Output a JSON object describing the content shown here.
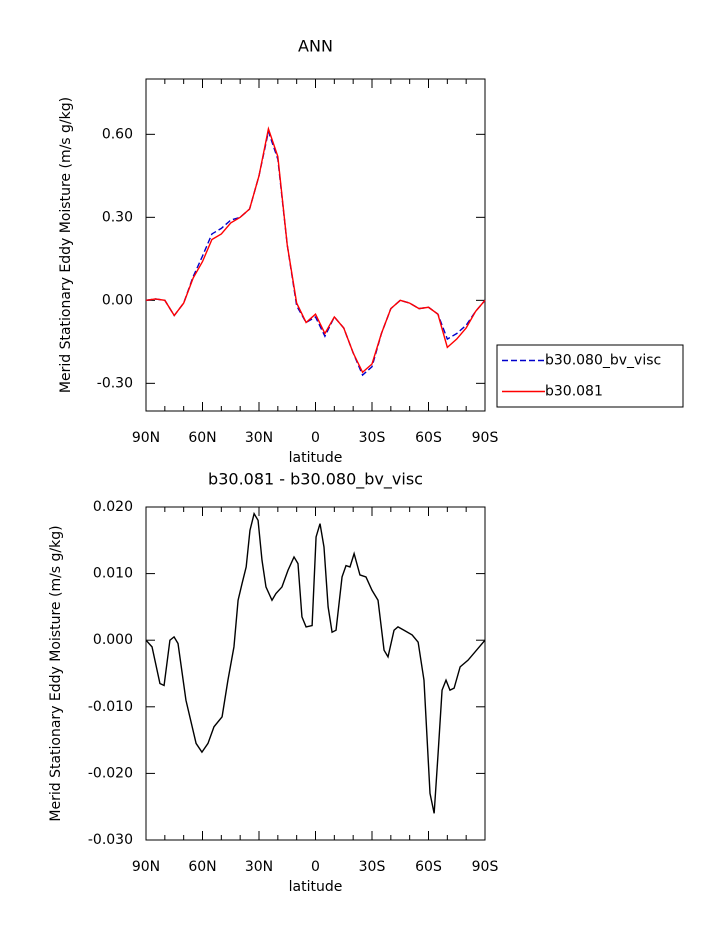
{
  "chart_data": [
    {
      "type": "line",
      "title": "ANN",
      "xlabel": "latitude",
      "ylabel": "Merid Stationary Eddy Moisture (m/s g/kg)",
      "x": [
        90,
        85,
        80,
        75,
        70,
        65,
        60,
        55,
        50,
        45,
        40,
        35,
        30,
        25,
        20,
        15,
        10,
        5,
        0,
        -5,
        -10,
        -15,
        -20,
        -25,
        -30,
        -35,
        -40,
        -45,
        -50,
        -55,
        -60,
        -65,
        -70,
        -75,
        -80,
        -85,
        -90
      ],
      "series": [
        {
          "name": "b30.080_bv_visc",
          "color": "#0000cc",
          "linestyle": "dashed",
          "values": [
            0,
            0.005,
            0,
            -0.055,
            -0.01,
            0.085,
            0.16,
            0.24,
            0.26,
            0.29,
            0.3,
            0.33,
            0.45,
            0.61,
            0.51,
            0.2,
            -0.02,
            -0.08,
            -0.06,
            -0.13,
            -0.06,
            -0.1,
            -0.19,
            -0.27,
            -0.24,
            -0.12,
            -0.03,
            0,
            -0.01,
            -0.03,
            -0.025,
            -0.05,
            -0.14,
            -0.12,
            -0.09,
            -0.04,
            0
          ]
        },
        {
          "name": "b30.081",
          "color": "#ff0000",
          "linestyle": "solid",
          "values": [
            0,
            0.005,
            0,
            -0.055,
            -0.01,
            0.08,
            0.14,
            0.22,
            0.24,
            0.28,
            0.3,
            0.33,
            0.45,
            0.62,
            0.52,
            0.2,
            -0.01,
            -0.08,
            -0.05,
            -0.12,
            -0.06,
            -0.1,
            -0.19,
            -0.26,
            -0.23,
            -0.12,
            -0.03,
            0,
            -0.01,
            -0.03,
            -0.025,
            -0.05,
            -0.17,
            -0.14,
            -0.1,
            -0.04,
            0
          ]
        }
      ],
      "xlim": [
        90,
        -90
      ],
      "xticks": [
        {
          "value": 90,
          "label": "90N"
        },
        {
          "value": 60,
          "label": "60N"
        },
        {
          "value": 30,
          "label": "30N"
        },
        0,
        {
          "value": -30,
          "label": "30S"
        },
        {
          "value": -60,
          "label": "60S"
        },
        {
          "value": -90,
          "label": "90S"
        }
      ],
      "ylim": [
        -0.4,
        0.8
      ],
      "yticks": [
        {
          "value": -0.3,
          "label": "-0.30"
        },
        {
          "value": 0,
          "label": "0.00"
        },
        {
          "value": 0.3,
          "label": "0.30"
        },
        {
          "value": 0.6,
          "label": "0.60"
        }
      ],
      "legend": "right"
    },
    {
      "type": "line",
      "title": "b30.081 - b30.080_bv_visc",
      "xlabel": "latitude",
      "ylabel": "Merid Stationary Eddy Moisture (m/s g/kg)",
      "x": [
        90,
        86.8,
        82.6,
        80.4,
        77.3,
        75.1,
        73,
        68.8,
        63.4,
        60.3,
        57.1,
        53.9,
        49.6,
        46.5,
        43.3,
        41.1,
        39,
        36.8,
        34.8,
        32.6,
        30.5,
        28.4,
        26.3,
        23.1,
        21,
        17.8,
        14.6,
        11.4,
        9.3,
        7.2,
        5,
        1.8,
        -0.3,
        -2.4,
        -4.5,
        -6.7,
        -8.8,
        -10.9,
        -14.1,
        -16.2,
        -18.3,
        -20.5,
        -23.6,
        -26.8,
        -30,
        -33.2,
        -36.4,
        -38.5,
        -41.7,
        -43.8,
        -47,
        -51.3,
        -54.5,
        -57.6,
        -60.8,
        -63,
        -65.1,
        -67.2,
        -69.3,
        -71.4,
        -73.6,
        -76.8,
        -81,
        -90
      ],
      "series": [
        {
          "color": "#000000",
          "linestyle": "solid",
          "values": [
            0,
            -0.001,
            -0.0065,
            -0.0068,
            0,
            0.0005,
            -0.0005,
            -0.009,
            -0.0155,
            -0.0168,
            -0.0155,
            -0.013,
            -0.0115,
            -0.006,
            -0.001,
            0.006,
            0.0085,
            0.011,
            0.0165,
            0.019,
            0.018,
            0.012,
            0.008,
            0.006,
            0.007,
            0.008,
            0.0105,
            0.0125,
            0.0115,
            0.0035,
            0.002,
            0.0022,
            0.0155,
            0.0175,
            0.014,
            0.005,
            0.0012,
            0.0015,
            0.0095,
            0.0112,
            0.011,
            0.013,
            0.0098,
            0.0095,
            0.0075,
            0.006,
            -0.0015,
            -0.0025,
            0.0015,
            0.002,
            0.0015,
            0.0008,
            -0.0003,
            -0.006,
            -0.023,
            -0.026,
            -0.017,
            -0.0075,
            -0.006,
            -0.0075,
            -0.0072,
            -0.004,
            -0.003,
            0
          ]
        }
      ],
      "xlim": [
        90,
        -90
      ],
      "xticks": [
        {
          "value": 90,
          "label": "90N"
        },
        {
          "value": 60,
          "label": "60N"
        },
        {
          "value": 30,
          "label": "30N"
        },
        0,
        {
          "value": -30,
          "label": "30S"
        },
        {
          "value": -60,
          "label": "60S"
        },
        {
          "value": -90,
          "label": "90S"
        }
      ],
      "ylim": [
        -0.03,
        0.02
      ],
      "yticks": [
        {
          "value": -0.03,
          "label": "-0.030"
        },
        {
          "value": -0.02,
          "label": "-0.020"
        },
        {
          "value": -0.01,
          "label": "-0.010"
        },
        {
          "value": 0,
          "label": "0.000"
        },
        {
          "value": 0.01,
          "label": "0.010"
        },
        {
          "value": 0.02,
          "label": "0.020"
        }
      ]
    }
  ]
}
